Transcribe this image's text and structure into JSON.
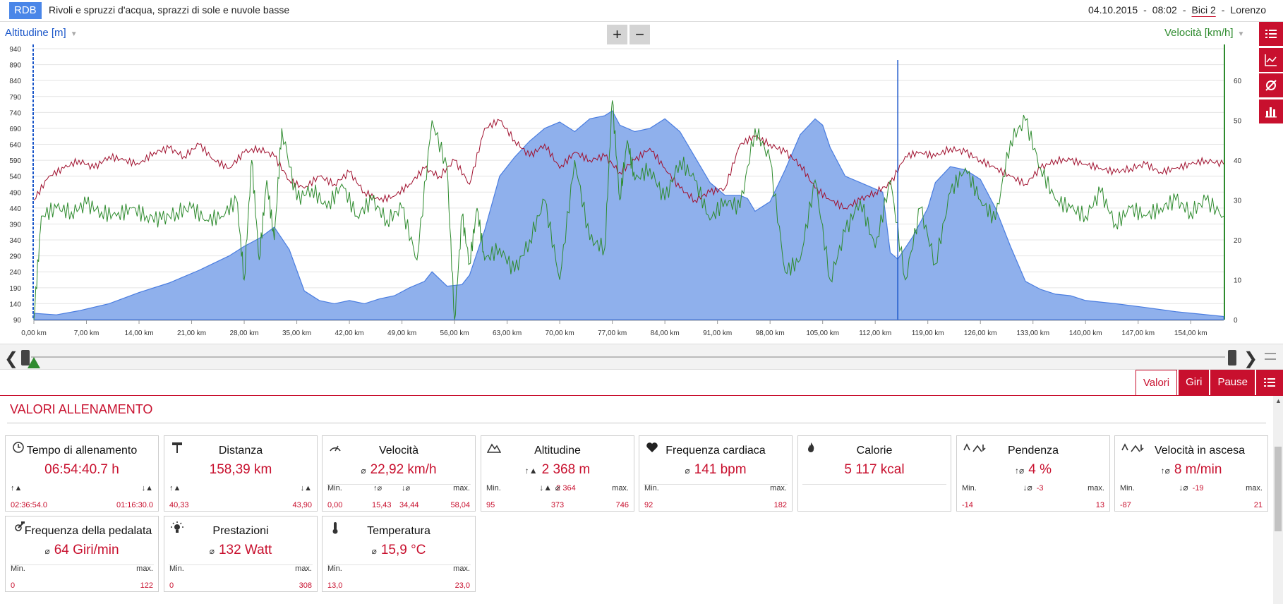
{
  "header": {
    "badge": "RDB",
    "title": "Rivoli e spruzzi d'acqua, sprazzi di sole e nuvole basse",
    "date": "04.10.2015",
    "time": "08:02",
    "bike": "Bici 2",
    "user": "Lorenzo"
  },
  "toolbar": {
    "zoom_in": "+",
    "zoom_out": "−"
  },
  "side_tools": [
    "list-icon",
    "line-chart-icon",
    "average-icon",
    "bar-chart-icon"
  ],
  "chart_data": {
    "type": "line",
    "x_unit": "km",
    "xlim": [
      0,
      158.39
    ],
    "x_tick_labels": [
      "0,00 km",
      "7,00 km",
      "14,00 km",
      "21,00 km",
      "28,00 km",
      "35,00 km",
      "42,00 km",
      "49,00 km",
      "56,00 km",
      "63,00 km",
      "70,00 km",
      "77,00 km",
      "84,00 km",
      "91,00 km",
      "98,00 km",
      "105,00 km",
      "112,00 km",
      "119,00 km",
      "126,00 km",
      "133,00 km",
      "140,00 km",
      "147,00 km",
      "154,00 km"
    ],
    "left_axis": {
      "label": "Altitudine [m]",
      "ylim": [
        90,
        940
      ],
      "ticks": [
        940,
        890,
        840,
        790,
        740,
        690,
        640,
        590,
        540,
        490,
        440,
        390,
        340,
        290,
        240,
        190,
        140,
        90
      ]
    },
    "right_axis": {
      "label": "Velocità [km/h]",
      "ylim": [
        0,
        68
      ],
      "ticks": [
        60,
        50,
        40,
        30,
        20,
        10,
        0
      ]
    },
    "series": [
      {
        "name": "Altitudine [m]",
        "type": "area",
        "axis": "left",
        "color": "#4a7de0",
        "fill": "#8fb0ec",
        "x": [
          0,
          3,
          6,
          10,
          14,
          18,
          22,
          26,
          28,
          30,
          32,
          34,
          36,
          38,
          40,
          42,
          44,
          46,
          48,
          50,
          52,
          53,
          55,
          57,
          58,
          60,
          62,
          64,
          66,
          68,
          70,
          72,
          74,
          76,
          77,
          78,
          80,
          82,
          84,
          86,
          88,
          90,
          92,
          94,
          95,
          96,
          98,
          100,
          102,
          104,
          105,
          106,
          108,
          110,
          112,
          113,
          114,
          115,
          117,
          119,
          120,
          122,
          124,
          126,
          128,
          130,
          132,
          134,
          136,
          138,
          140,
          144,
          148,
          152,
          155,
          158.39
        ],
        "y": [
          110,
          105,
          118,
          140,
          175,
          205,
          245,
          290,
          320,
          345,
          380,
          310,
          180,
          150,
          140,
          150,
          140,
          155,
          165,
          190,
          210,
          240,
          195,
          200,
          230,
          370,
          540,
          600,
          650,
          690,
          710,
          680,
          720,
          730,
          745,
          700,
          680,
          690,
          720,
          680,
          600,
          520,
          480,
          480,
          470,
          430,
          460,
          560,
          670,
          720,
          700,
          630,
          540,
          520,
          500,
          490,
          300,
          280,
          350,
          440,
          520,
          570,
          560,
          530,
          440,
          320,
          210,
          185,
          170,
          165,
          150,
          140,
          128,
          115,
          108,
          100
        ]
      },
      {
        "name": "Frequenza cardiaca",
        "type": "line",
        "axis": "right",
        "color": "#a0102e",
        "x": [
          0,
          2,
          4,
          6,
          8,
          10,
          12,
          14,
          16,
          18,
          20,
          22,
          24,
          26,
          28,
          30,
          32,
          34,
          36,
          38,
          40,
          42,
          44,
          46,
          48,
          50,
          52,
          54,
          56,
          58,
          60,
          62,
          64,
          66,
          68,
          70,
          72,
          74,
          76,
          78,
          80,
          82,
          84,
          86,
          88,
          90,
          92,
          94,
          96,
          98,
          100,
          102,
          104,
          106,
          108,
          110,
          112,
          114,
          116,
          118,
          120,
          122,
          124,
          126,
          128,
          130,
          132,
          134,
          136,
          138,
          140,
          142,
          144,
          146,
          148,
          150,
          152,
          154,
          156,
          158.39
        ],
        "y": [
          30,
          36,
          38,
          40,
          38,
          41,
          40,
          39,
          42,
          43,
          41,
          44,
          40,
          38,
          42,
          43,
          41,
          35,
          33,
          36,
          34,
          37,
          32,
          30,
          31,
          34,
          38,
          36,
          40,
          34,
          48,
          50,
          45,
          41,
          44,
          38,
          42,
          40,
          41,
          37,
          40,
          43,
          38,
          33,
          30,
          32,
          33,
          44,
          46,
          44,
          42,
          39,
          33,
          30,
          28,
          30,
          32,
          34,
          41,
          42,
          41,
          43,
          42,
          40,
          38,
          36,
          34,
          38,
          40,
          40,
          39,
          38,
          37,
          38,
          39,
          37,
          38,
          39,
          40,
          39
        ]
      },
      {
        "name": "Velocità [km/h]",
        "type": "line",
        "axis": "right",
        "color": "#2e8b2e",
        "x": [
          0,
          1,
          3,
          5,
          7,
          9,
          11,
          13,
          15,
          17,
          19,
          21,
          23,
          25,
          27,
          28,
          29,
          30,
          31,
          32,
          33,
          35,
          37,
          39,
          41,
          43,
          45,
          47,
          49,
          51,
          53,
          55,
          56,
          57,
          58,
          59,
          60,
          62,
          64,
          66,
          68,
          70,
          72,
          74,
          76,
          77,
          78,
          79,
          80,
          82,
          84,
          86,
          88,
          90,
          92,
          94,
          96,
          98,
          100,
          102,
          104,
          106,
          108,
          110,
          112,
          114,
          116,
          118,
          120,
          122,
          124,
          126,
          128,
          130,
          132,
          134,
          136,
          138,
          140,
          142,
          144,
          146,
          148,
          150,
          152,
          154,
          156,
          158.39
        ],
        "y": [
          0,
          26,
          28,
          27,
          29,
          27,
          26,
          28,
          26,
          25,
          27,
          28,
          25,
          26,
          30,
          10,
          40,
          15,
          35,
          20,
          48,
          30,
          33,
          28,
          34,
          26,
          30,
          25,
          28,
          15,
          50,
          38,
          0,
          26,
          14,
          28,
          15,
          18,
          12,
          20,
          30,
          10,
          40,
          20,
          18,
          55,
          30,
          45,
          35,
          38,
          30,
          40,
          35,
          25,
          30,
          28,
          48,
          40,
          12,
          15,
          35,
          10,
          22,
          30,
          18,
          35,
          10,
          28,
          14,
          32,
          38,
          30,
          25,
          45,
          50,
          38,
          30,
          28,
          26,
          32,
          24,
          28,
          26,
          28,
          30,
          27,
          30,
          26
        ]
      }
    ]
  },
  "scroller": {
    "left_arrow": "❮",
    "right_arrow": "❯"
  },
  "tabs": [
    "Valori",
    "Giri",
    "Pause"
  ],
  "section_title": "VALORI ALLENAMENTO",
  "cards": {
    "tempo": {
      "title": "Tempo di allenamento",
      "value": "06:54:40.7 h",
      "up": "02:36:54.0",
      "down": "01:16:30.0"
    },
    "distanza": {
      "title": "Distanza",
      "value": "158,39 km",
      "up": "40,33",
      "down": "43,90"
    },
    "velocita": {
      "title": "Velocità",
      "value": "22,92 km/h",
      "min_label": "Min.",
      "min": "0,00",
      "avg_up": "15,43",
      "avg_down": "34,44",
      "max_label": "max.",
      "max": "58,04"
    },
    "altitudine": {
      "title": "Altitudine",
      "value": "2 368 m",
      "sub": "2 364",
      "min_label": "Min.",
      "min": "95",
      "avg": "373",
      "max_label": "max.",
      "max": "746"
    },
    "frequenza": {
      "title": "Frequenza cardiaca",
      "value": "141 bpm",
      "min_label": "Min.",
      "min": "92",
      "max_label": "max.",
      "max": "182"
    },
    "calorie": {
      "title": "Calorie",
      "value": "5 117 kcal"
    },
    "pendenza": {
      "title": "Pendenza",
      "value": "4 %",
      "sub": "-3",
      "min_label": "Min.",
      "min": "-14",
      "max_label": "max.",
      "max": "13"
    },
    "vel_ascesa": {
      "title": "Velocità in ascesa",
      "value": "8 m/min",
      "sub": "-19",
      "min_label": "Min.",
      "min": "-87",
      "max_label": "max.",
      "max": "21"
    },
    "cadenza": {
      "title": "Frequenza della pedalata",
      "value": "64 Giri/min",
      "min_label": "Min.",
      "min": "0",
      "max_label": "max.",
      "max": "122"
    },
    "prestazioni": {
      "title": "Prestazioni",
      "value": "132 Watt",
      "min_label": "Min.",
      "min": "0",
      "max_label": "max.",
      "max": "308"
    },
    "temperatura": {
      "title": "Temperatura",
      "value": "15,9 °C",
      "min_label": "Min.",
      "min": "13,0",
      "max_label": "max.",
      "max": "23,0"
    }
  },
  "colors": {
    "accent": "#c8102e",
    "altitude": "#4a7de0",
    "speed": "#2e8b2e",
    "heart": "#a0102e"
  },
  "avg_symbol": "⌀"
}
